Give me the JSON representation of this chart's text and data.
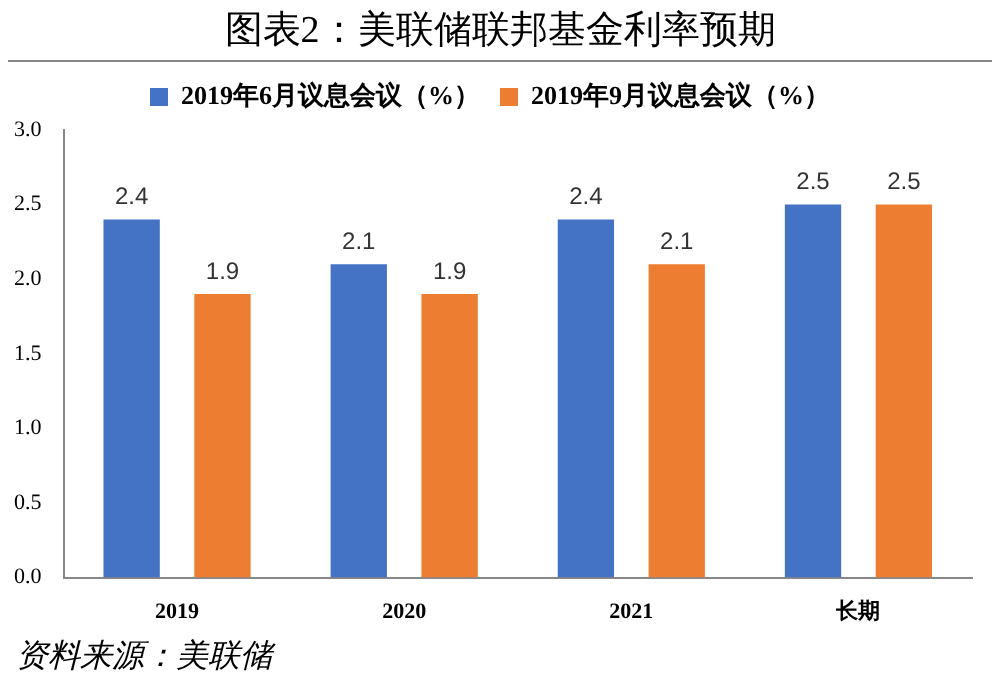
{
  "chart_data": {
    "type": "bar",
    "title": "图表2：美联储联邦基金利率预期",
    "categories": [
      "2019",
      "2020",
      "2021",
      "长期"
    ],
    "series": [
      {
        "name": "2019年6月议息会议（%）",
        "color": "#4472c4",
        "values": [
          2.4,
          2.1,
          2.4,
          2.5
        ]
      },
      {
        "name": "2019年9月议息会议（%）",
        "color": "#ed7d31",
        "values": [
          1.9,
          1.9,
          2.1,
          2.5
        ]
      }
    ],
    "ylim": [
      0,
      3
    ],
    "yticks": [
      {
        "value": 0,
        "label": "0.0"
      },
      {
        "value": 0.5,
        "label": "0.5"
      },
      {
        "value": 1,
        "label": "1.0"
      },
      {
        "value": 1.5,
        "label": "1.5"
      },
      {
        "value": 2,
        "label": "2.0"
      },
      {
        "value": 2.5,
        "label": "2.5"
      },
      {
        "value": 3,
        "label": "3.0"
      }
    ],
    "grid": false,
    "legend": "top",
    "data_labels": true,
    "annotations": [
      "资料来源：美联储"
    ]
  }
}
